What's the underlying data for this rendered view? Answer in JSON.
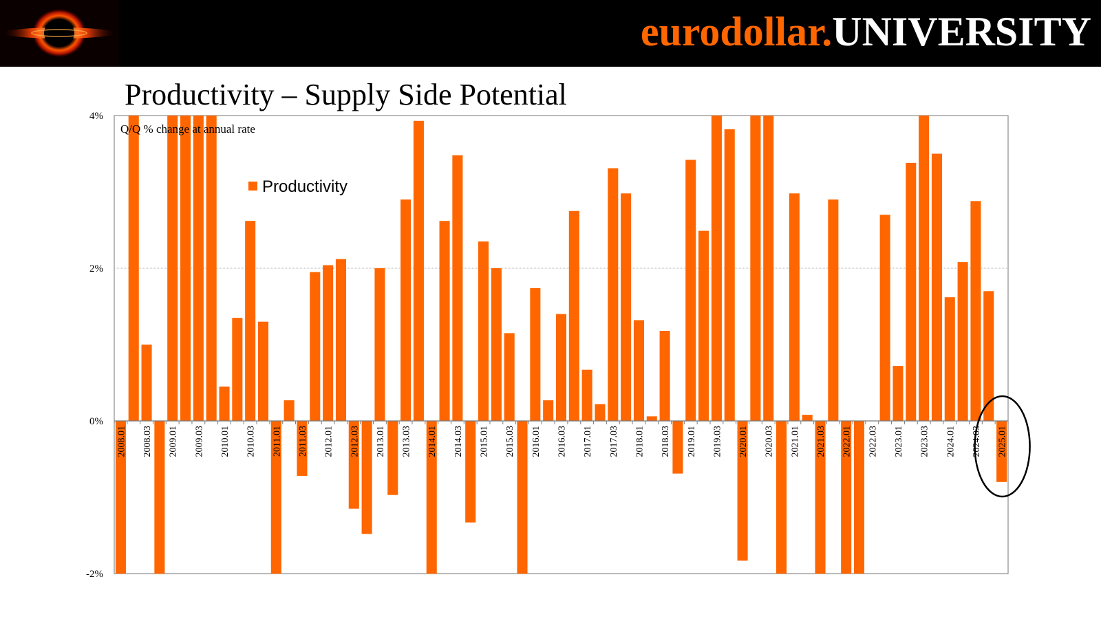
{
  "brand": {
    "name_part1": "eurodollar.",
    "name_part2": "UNIVERSITY",
    "accent": "#ff6600"
  },
  "page_title": "Productivity – Supply Side Potential",
  "chart_data": {
    "type": "bar",
    "subtitle": "Q/Q % change at annual rate",
    "legend": {
      "label": "Productivity",
      "placement": "top-left"
    },
    "bar_color": "#ff6600",
    "ylim": [
      -2,
      4
    ],
    "yticks": [
      -2,
      0,
      2,
      4
    ],
    "ytick_labels": [
      "-2%",
      "0%",
      "2%",
      "4%"
    ],
    "gridlines": [
      2
    ],
    "categories": [
      "2008.01",
      "2008.02",
      "2008.03",
      "2008.04",
      "2009.01",
      "2009.02",
      "2009.03",
      "2009.04",
      "2010.01",
      "2010.02",
      "2010.03",
      "2010.04",
      "2011.01",
      "2011.02",
      "2011.03",
      "2011.04",
      "2012.01",
      "2012.02",
      "2012.03",
      "2012.04",
      "2013.01",
      "2013.02",
      "2013.03",
      "2013.04",
      "2014.01",
      "2014.02",
      "2014.03",
      "2014.04",
      "2015.01",
      "2015.02",
      "2015.03",
      "2015.04",
      "2016.01",
      "2016.02",
      "2016.03",
      "2016.04",
      "2017.01",
      "2017.02",
      "2017.03",
      "2017.04",
      "2018.01",
      "2018.02",
      "2018.03",
      "2018.04",
      "2019.01",
      "2019.02",
      "2019.03",
      "2019.04",
      "2020.01",
      "2020.02",
      "2020.03",
      "2020.04",
      "2021.01",
      "2021.02",
      "2021.03",
      "2021.04",
      "2022.01",
      "2022.02",
      "2022.03",
      "2022.04",
      "2023.01",
      "2023.02",
      "2023.03",
      "2023.04",
      "2024.01",
      "2024.02",
      "2024.03",
      "2024.04",
      "2025.01"
    ],
    "x_labels_shown": [
      "2008.01",
      "2008.03",
      "2009.01",
      "2009.03",
      "2010.01",
      "2010.03",
      "2011.01",
      "2011.03",
      "2012.01",
      "2012.03",
      "2013.01",
      "2013.03",
      "2014.01",
      "2014.03",
      "2015.01",
      "2015.03",
      "2016.01",
      "2016.03",
      "2017.01",
      "2017.03",
      "2018.01",
      "2018.03",
      "2019.01",
      "2019.03",
      "2020.01",
      "2020.03",
      "2021.01",
      "2021.03",
      "2022.01",
      "2022.03",
      "2023.01",
      "2023.03",
      "2024.01",
      "2024.03",
      "2025.01"
    ],
    "values": [
      -2.5,
      4.5,
      1.0,
      -2.5,
      4.5,
      4.5,
      4.5,
      4.5,
      0.45,
      1.35,
      2.62,
      1.3,
      -2.5,
      0.27,
      -0.72,
      1.95,
      2.04,
      2.12,
      -1.15,
      -1.48,
      2.0,
      -0.97,
      2.9,
      3.93,
      -2.5,
      2.62,
      3.48,
      -1.33,
      2.35,
      2.0,
      1.15,
      -2.5,
      1.74,
      0.27,
      1.4,
      2.75,
      0.67,
      0.22,
      3.31,
      2.98,
      1.32,
      0.06,
      1.18,
      -0.69,
      3.42,
      2.49,
      4.5,
      3.82,
      -1.83,
      4.5,
      4.5,
      -2.5,
      2.98,
      0.08,
      -2.5,
      2.9,
      -2.5,
      -2.5,
      0.0,
      2.7,
      0.72,
      3.38,
      4.5,
      3.5,
      1.62,
      2.08,
      2.88,
      1.7,
      -0.8
    ],
    "highlight": {
      "category": "2025.01",
      "shape": "ellipse"
    }
  }
}
